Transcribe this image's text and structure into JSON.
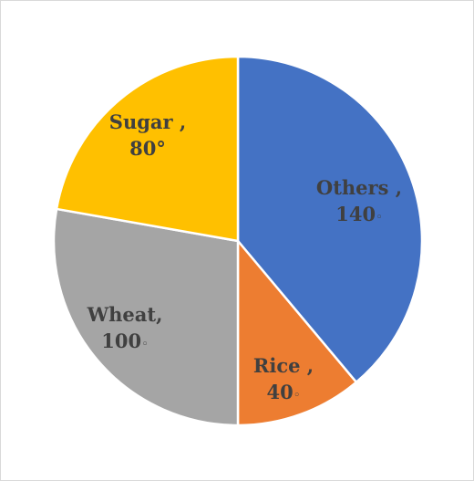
{
  "chart_data": {
    "type": "pie",
    "title": "",
    "slices": [
      {
        "category": "Others",
        "value": 140,
        "line1": "Others ,",
        "line2": "140",
        "degree_mark": "◦",
        "color": "#4472C4"
      },
      {
        "category": "Rice",
        "value": 40,
        "line1": "Rice ,",
        "line2": "40",
        "degree_mark": "◦",
        "color": "#ED7D31"
      },
      {
        "category": "Wheat",
        "value": 100,
        "line1": "Wheat,",
        "line2": "100",
        "degree_mark": "◦",
        "color": "#A5A5A5"
      },
      {
        "category": "Sugar",
        "value": 80,
        "line1": "Sugar ,",
        "line2": "80",
        "degree_mark": "°",
        "color": "#FFC000"
      }
    ],
    "legend": "none",
    "start_angle": "12 o'clock, clockwise"
  }
}
